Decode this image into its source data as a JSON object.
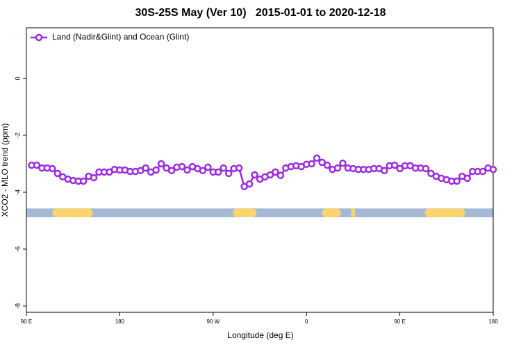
{
  "chart_data": {
    "type": "line",
    "title": "30S-25S May (Ver 10)   2015-01-01 to 2020-12-18",
    "xlabel": "Longitude (deg E)",
    "ylabel": "XCO2 - MLO trend (ppm)",
    "xlim": [
      90,
      540
    ],
    "ylim": [
      -8.22,
      1.78
    ],
    "xticks": [
      {
        "value": 90,
        "label": "90 E"
      },
      {
        "value": 180,
        "label": "180"
      },
      {
        "value": 270,
        "label": "90 W"
      },
      {
        "value": 360,
        "label": "0"
      },
      {
        "value": 450,
        "label": "90 E"
      },
      {
        "value": 540,
        "label": "180"
      }
    ],
    "yticks": [
      0,
      -2,
      -4,
      -6,
      -8
    ],
    "legend": "top-left",
    "x": [
      95,
      100,
      105,
      110,
      115,
      120,
      125,
      130,
      135,
      140,
      145,
      150,
      155,
      160,
      165,
      170,
      175,
      180,
      185,
      190,
      195,
      200,
      205,
      210,
      215,
      220,
      225,
      230,
      235,
      240,
      245,
      250,
      255,
      260,
      265,
      270,
      275,
      280,
      285,
      290,
      295,
      300,
      305,
      310,
      315,
      320,
      325,
      330,
      335,
      340,
      345,
      350,
      355,
      360,
      365,
      370,
      375,
      380,
      385,
      390,
      395,
      400,
      405,
      410,
      415,
      420,
      425,
      430,
      435,
      440,
      445,
      450,
      455,
      460,
      465,
      470,
      475,
      480,
      485,
      490,
      495,
      500,
      505,
      510,
      515,
      520,
      525,
      530,
      535,
      540
    ],
    "series": [
      {
        "name": "Land (Nadir&Glint) and Ocean (Glint)",
        "color": "#9b2be0",
        "values": [
          -3.05,
          -3.05,
          -3.15,
          -3.15,
          -3.17,
          -3.34,
          -3.46,
          -3.54,
          -3.59,
          -3.61,
          -3.61,
          -3.44,
          -3.49,
          -3.29,
          -3.29,
          -3.29,
          -3.2,
          -3.22,
          -3.22,
          -3.27,
          -3.27,
          -3.24,
          -3.15,
          -3.29,
          -3.22,
          -3.0,
          -3.15,
          -3.24,
          -3.12,
          -3.1,
          -3.22,
          -3.1,
          -3.17,
          -3.24,
          -3.12,
          -3.29,
          -3.29,
          -3.15,
          -3.34,
          -3.17,
          -3.15,
          -3.8,
          -3.71,
          -3.39,
          -3.54,
          -3.46,
          -3.39,
          -3.29,
          -3.41,
          -3.15,
          -3.1,
          -3.07,
          -3.1,
          -3.02,
          -3.0,
          -2.8,
          -2.95,
          -3.05,
          -3.2,
          -3.15,
          -2.98,
          -3.15,
          -3.17,
          -3.2,
          -3.2,
          -3.2,
          -3.17,
          -3.17,
          -3.24,
          -3.07,
          -3.05,
          -3.17,
          -3.07,
          -3.07,
          -3.15,
          -3.15,
          -3.17,
          -3.34,
          -3.44,
          -3.51,
          -3.56,
          -3.61,
          -3.61,
          -3.44,
          -3.51,
          -3.27,
          -3.27,
          -3.27,
          -3.15,
          -3.2
        ]
      }
    ],
    "surface_band": {
      "y": [
        -4.88,
        -4.57
      ],
      "color": "#a5b9d5",
      "land_color": "#fad56e",
      "land": [
        [
          115,
          154
        ],
        [
          289,
          312
        ],
        [
          375,
          393
        ],
        [
          403,
          407
        ],
        [
          474,
          513
        ]
      ]
    }
  }
}
